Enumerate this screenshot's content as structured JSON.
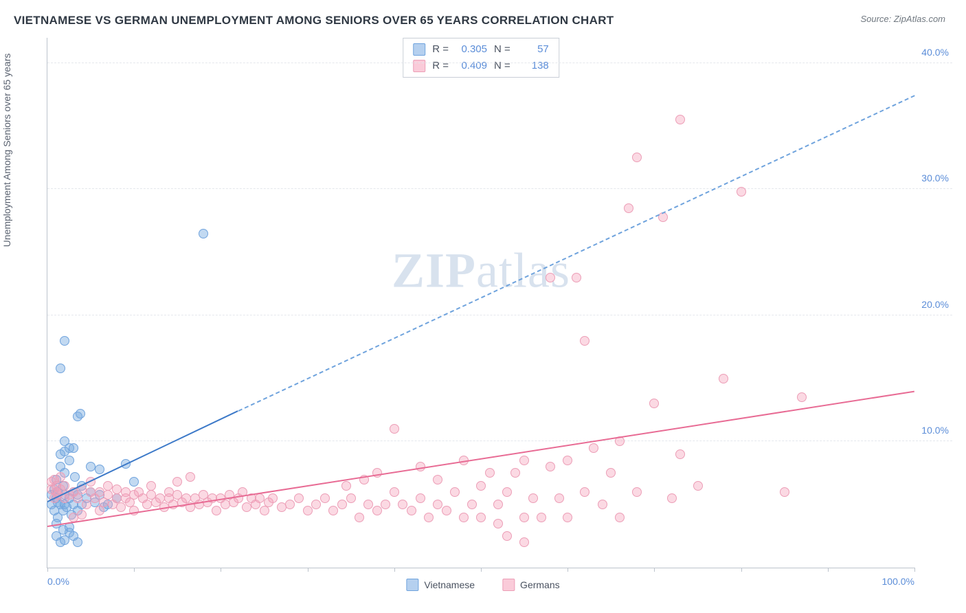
{
  "title": "VIETNAMESE VS GERMAN UNEMPLOYMENT AMONG SENIORS OVER 65 YEARS CORRELATION CHART",
  "source": "Source: ZipAtlas.com",
  "y_axis_label": "Unemployment Among Seniors over 65 years",
  "watermark_zip": "ZIP",
  "watermark_atlas": "atlas",
  "chart": {
    "type": "scatter",
    "background_color": "#ffffff",
    "grid_color": "#e4e7ec",
    "axis_color": "#bcc3cc",
    "xlim": [
      0,
      100
    ],
    "ylim": [
      0,
      42
    ],
    "x_ticks": [
      0,
      10,
      20,
      30,
      40,
      50,
      60,
      70,
      80,
      90,
      100
    ],
    "x_tick_labels": {
      "0": "0.0%",
      "100": "100.0%"
    },
    "y_ticks": [
      10,
      20,
      30,
      40
    ],
    "y_tick_labels": {
      "10": "10.0%",
      "20": "20.0%",
      "30": "30.0%",
      "40": "40.0%"
    },
    "marker_size": 14,
    "series": [
      {
        "name": "Vietnamese",
        "color_fill": "rgba(120,170,225,0.45)",
        "color_stroke": "#6fa3dd",
        "R": "0.305",
        "N": "57",
        "trend": {
          "x1": 0,
          "y1": 5.3,
          "x2_solid": 22,
          "y2_solid": 12.5,
          "x2_dash": 100,
          "y2_dash": 37.5,
          "solid_color": "#3c79c8",
          "dash_color": "#6fa3dd"
        },
        "points": [
          [
            0.5,
            5.0
          ],
          [
            0.5,
            5.8
          ],
          [
            0.8,
            4.5
          ],
          [
            0.8,
            6.2
          ],
          [
            1.0,
            5.5
          ],
          [
            1.0,
            7.0
          ],
          [
            1.2,
            4.0
          ],
          [
            1.2,
            5.2
          ],
          [
            1.2,
            6.0
          ],
          [
            1.5,
            5.0
          ],
          [
            1.5,
            8.0
          ],
          [
            1.5,
            9.0
          ],
          [
            1.8,
            4.5
          ],
          [
            1.8,
            6.5
          ],
          [
            2.0,
            5.0
          ],
          [
            2.0,
            5.8
          ],
          [
            2.0,
            7.5
          ],
          [
            2.0,
            10.0
          ],
          [
            2.2,
            4.8
          ],
          [
            2.5,
            5.5
          ],
          [
            2.5,
            8.5
          ],
          [
            2.5,
            9.5
          ],
          [
            2.8,
            4.2
          ],
          [
            3.0,
            5.0
          ],
          [
            3.0,
            6.0
          ],
          [
            3.2,
            7.2
          ],
          [
            3.5,
            4.5
          ],
          [
            3.5,
            5.8
          ],
          [
            3.5,
            12.0
          ],
          [
            3.8,
            12.2
          ],
          [
            4.0,
            5.0
          ],
          [
            4.0,
            6.5
          ],
          [
            4.5,
            5.5
          ],
          [
            5.0,
            6.0
          ],
          [
            5.0,
            8.0
          ],
          [
            5.5,
            5.2
          ],
          [
            6.0,
            5.8
          ],
          [
            6.5,
            4.8
          ],
          [
            1.0,
            2.5
          ],
          [
            1.5,
            2.0
          ],
          [
            2.0,
            2.2
          ],
          [
            2.5,
            2.8
          ],
          [
            3.0,
            2.5
          ],
          [
            3.5,
            2.0
          ],
          [
            1.0,
            3.5
          ],
          [
            1.8,
            3.0
          ],
          [
            2.5,
            3.2
          ],
          [
            2.0,
            18.0
          ],
          [
            1.5,
            15.8
          ],
          [
            2.0,
            9.2
          ],
          [
            3.0,
            9.5
          ],
          [
            6.0,
            7.8
          ],
          [
            7.0,
            5.0
          ],
          [
            8.0,
            5.5
          ],
          [
            9.0,
            8.2
          ],
          [
            10.0,
            6.8
          ],
          [
            18.0,
            26.5
          ]
        ]
      },
      {
        "name": "Germans",
        "color_fill": "rgba(245,160,185,0.40)",
        "color_stroke": "#ec9db6",
        "R": "0.409",
        "N": "138",
        "trend": {
          "x1": 0,
          "y1": 3.3,
          "x2_solid": 100,
          "y2_solid": 14.0,
          "solid_color": "#e86b94"
        },
        "points": [
          [
            0.5,
            6.2
          ],
          [
            0.5,
            6.8
          ],
          [
            0.8,
            5.5
          ],
          [
            0.8,
            7.0
          ],
          [
            1.0,
            6.0
          ],
          [
            1.0,
            6.5
          ],
          [
            1.2,
            5.8
          ],
          [
            1.5,
            6.2
          ],
          [
            1.5,
            7.2
          ],
          [
            2.0,
            5.5
          ],
          [
            2.0,
            6.5
          ],
          [
            2.5,
            5.8
          ],
          [
            3.0,
            6.0
          ],
          [
            3.0,
            4.0
          ],
          [
            3.5,
            5.5
          ],
          [
            4.0,
            6.2
          ],
          [
            4.0,
            4.2
          ],
          [
            4.5,
            5.0
          ],
          [
            5.0,
            6.0
          ],
          [
            5.0,
            6.8
          ],
          [
            5.5,
            5.5
          ],
          [
            6.0,
            4.5
          ],
          [
            6.0,
            6.0
          ],
          [
            6.5,
            5.2
          ],
          [
            7.0,
            5.8
          ],
          [
            7.0,
            6.5
          ],
          [
            7.5,
            5.0
          ],
          [
            8.0,
            5.5
          ],
          [
            8.0,
            6.2
          ],
          [
            8.5,
            4.8
          ],
          [
            9.0,
            5.5
          ],
          [
            9.0,
            6.0
          ],
          [
            9.5,
            5.2
          ],
          [
            10.0,
            5.8
          ],
          [
            10.0,
            4.5
          ],
          [
            10.5,
            6.0
          ],
          [
            11.0,
            5.5
          ],
          [
            11.5,
            5.0
          ],
          [
            12.0,
            5.8
          ],
          [
            12.0,
            6.5
          ],
          [
            12.5,
            5.2
          ],
          [
            13.0,
            5.5
          ],
          [
            13.5,
            4.8
          ],
          [
            14.0,
            5.5
          ],
          [
            14.0,
            6.0
          ],
          [
            14.5,
            5.0
          ],
          [
            15.0,
            5.8
          ],
          [
            15.5,
            5.2
          ],
          [
            16.0,
            5.5
          ],
          [
            16.5,
            4.8
          ],
          [
            17.0,
            5.5
          ],
          [
            17.5,
            5.0
          ],
          [
            18.0,
            5.8
          ],
          [
            18.5,
            5.2
          ],
          [
            19.0,
            5.5
          ],
          [
            19.5,
            4.5
          ],
          [
            20.0,
            5.5
          ],
          [
            20.5,
            5.0
          ],
          [
            21.0,
            5.8
          ],
          [
            21.5,
            5.2
          ],
          [
            22.0,
            5.5
          ],
          [
            22.5,
            6.0
          ],
          [
            23.0,
            4.8
          ],
          [
            23.5,
            5.5
          ],
          [
            24.0,
            5.0
          ],
          [
            24.5,
            5.5
          ],
          [
            25.0,
            4.5
          ],
          [
            25.5,
            5.2
          ],
          [
            26.0,
            5.5
          ],
          [
            27.0,
            4.8
          ],
          [
            28.0,
            5.0
          ],
          [
            29.0,
            5.5
          ],
          [
            30.0,
            4.5
          ],
          [
            31.0,
            5.0
          ],
          [
            32.0,
            5.5
          ],
          [
            33.0,
            4.5
          ],
          [
            34.0,
            5.0
          ],
          [
            34.5,
            6.5
          ],
          [
            35.0,
            5.5
          ],
          [
            36.0,
            4.0
          ],
          [
            36.5,
            7.0
          ],
          [
            37.0,
            5.0
          ],
          [
            38.0,
            4.5
          ],
          [
            38.0,
            7.5
          ],
          [
            39.0,
            5.0
          ],
          [
            40.0,
            6.0
          ],
          [
            40.0,
            11.0
          ],
          [
            41.0,
            5.0
          ],
          [
            42.0,
            4.5
          ],
          [
            43.0,
            5.5
          ],
          [
            43.0,
            8.0
          ],
          [
            44.0,
            4.0
          ],
          [
            45.0,
            5.0
          ],
          [
            45.0,
            7.0
          ],
          [
            46.0,
            4.5
          ],
          [
            47.0,
            6.0
          ],
          [
            48.0,
            4.0
          ],
          [
            48.0,
            8.5
          ],
          [
            49.0,
            5.0
          ],
          [
            50.0,
            6.5
          ],
          [
            50.0,
            4.0
          ],
          [
            51.0,
            7.5
          ],
          [
            52.0,
            5.0
          ],
          [
            52.0,
            3.5
          ],
          [
            53.0,
            6.0
          ],
          [
            54.0,
            7.5
          ],
          [
            55.0,
            4.0
          ],
          [
            55.0,
            8.5
          ],
          [
            56.0,
            5.5
          ],
          [
            57.0,
            4.0
          ],
          [
            58.0,
            8.0
          ],
          [
            58.0,
            23.0
          ],
          [
            59.0,
            5.5
          ],
          [
            60.0,
            4.0
          ],
          [
            60.0,
            8.5
          ],
          [
            61.0,
            23.0
          ],
          [
            62.0,
            6.0
          ],
          [
            62.0,
            18.0
          ],
          [
            63.0,
            9.5
          ],
          [
            64.0,
            5.0
          ],
          [
            65.0,
            7.5
          ],
          [
            66.0,
            4.0
          ],
          [
            66.0,
            10.0
          ],
          [
            67.0,
            28.5
          ],
          [
            68.0,
            6.0
          ],
          [
            68.0,
            32.5
          ],
          [
            70.0,
            13.0
          ],
          [
            71.0,
            27.8
          ],
          [
            72.0,
            5.5
          ],
          [
            73.0,
            9.0
          ],
          [
            73.0,
            35.5
          ],
          [
            75.0,
            6.5
          ],
          [
            78.0,
            15.0
          ],
          [
            80.0,
            29.8
          ],
          [
            85.0,
            6.0
          ],
          [
            87.0,
            13.5
          ],
          [
            15.0,
            6.8
          ],
          [
            16.5,
            7.2
          ],
          [
            53.0,
            2.5
          ],
          [
            55.0,
            2.0
          ]
        ]
      }
    ],
    "legend_bottom": [
      {
        "swatch": "blue",
        "label": "Vietnamese"
      },
      {
        "swatch": "pink",
        "label": "Germans"
      }
    ]
  }
}
